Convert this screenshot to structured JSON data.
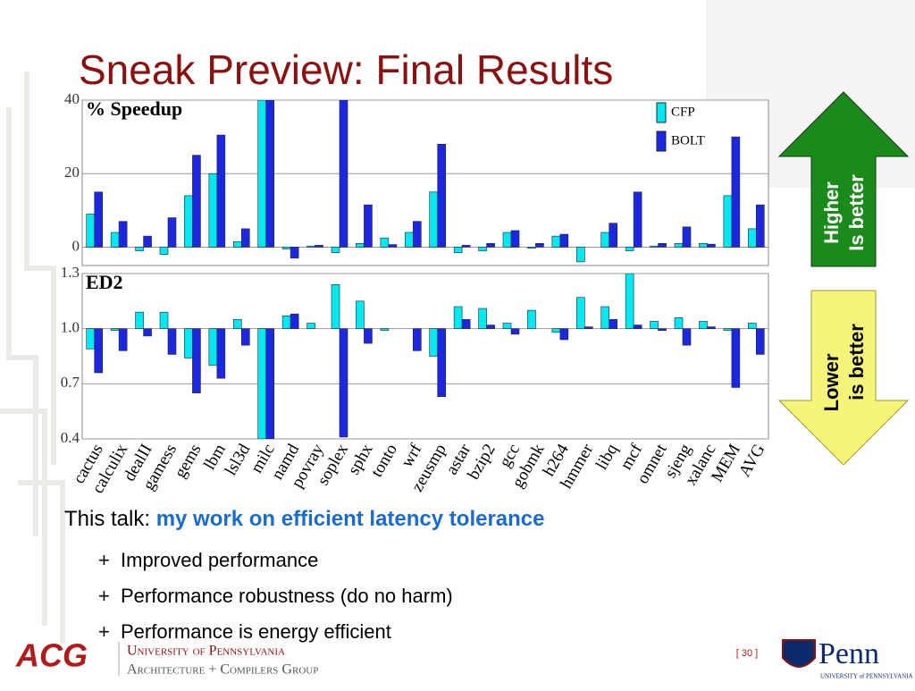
{
  "title": "Sneak Preview: Final Results",
  "chart_data": [
    {
      "type": "bar",
      "title": "% Speedup",
      "ylim": [
        -5,
        40
      ],
      "yticks": [
        0,
        20,
        40
      ],
      "grid": true,
      "legend": "top-right",
      "series": [
        {
          "name": "CFP",
          "color": "#00e8f0",
          "values": [
            9,
            4,
            -1,
            -2,
            14,
            20,
            1.5,
            40,
            -0.5,
            0.3,
            -1.5,
            1,
            2.5,
            4,
            15,
            -1.5,
            -1,
            4,
            -0.3,
            3,
            -4,
            4,
            -1,
            0.3,
            1,
            1,
            14,
            5
          ]
        },
        {
          "name": "BOLT",
          "color": "#1c28e0",
          "values": [
            15,
            7,
            3,
            8,
            25,
            30.5,
            5,
            40,
            -3,
            0.5,
            40,
            11.5,
            0.7,
            7,
            28,
            0.5,
            1,
            4.5,
            1,
            3.5,
            0,
            6.5,
            15,
            1,
            5.5,
            0.8,
            30,
            11.5
          ]
        }
      ]
    },
    {
      "type": "bar",
      "title": "ED2",
      "ylim": [
        0.4,
        1.3
      ],
      "yticks": [
        1.3,
        {
          "value": 1,
          "label": "1.0"
        },
        0.7,
        0.4
      ],
      "grid": true,
      "baseline": 1,
      "categories": [
        "cactus",
        "calculix",
        "dealII",
        "gamess",
        "gems",
        "lbm",
        "lsl3d",
        "milc",
        "namd",
        "povray",
        "soplex",
        "sphx",
        "tonto",
        "wrf",
        "zeusmp",
        "astar",
        "bzip2",
        "gcc",
        "gobmk",
        "h264",
        "hmmer",
        "libq",
        "mcf",
        "omnet",
        "sjeng",
        "xalanc",
        "MEM",
        "AVG"
      ],
      "series": [
        {
          "color": "#00e8f0",
          "values": [
            0.89,
            0.99,
            1.09,
            1.09,
            0.84,
            0.8,
            1.05,
            0.4,
            1.07,
            1.03,
            1.24,
            1.15,
            0.99,
            1,
            0.85,
            1.12,
            1.11,
            1.03,
            1.1,
            0.98,
            1.17,
            1.12,
            1.3,
            1.04,
            1.06,
            1.04,
            0.99,
            1.03
          ]
        },
        {
          "color": "#1c28e0",
          "values": [
            0.76,
            0.88,
            0.96,
            0.86,
            0.65,
            0.73,
            0.91,
            0.4,
            1.08,
            1,
            0.41,
            0.92,
            1,
            0.88,
            0.63,
            1.05,
            1.02,
            0.97,
            1,
            0.94,
            1.01,
            1.05,
            1.02,
            0.99,
            0.91,
            1.01,
            0.68,
            0.86
          ]
        }
      ]
    }
  ],
  "arrows": {
    "up": [
      "Higher",
      "Is better"
    ],
    "down": [
      "Lower",
      "is better"
    ]
  },
  "talk": {
    "lead": "This talk:",
    "highlight": "my work on efficient latency tolerance"
  },
  "bullet_marker": "+",
  "bullets": [
    "Improved performance",
    "Performance robustness (do no harm)",
    "Performance is energy efficient"
  ],
  "footer": {
    "page": "[ 30 ]",
    "acg": "ACG",
    "university": "University of Pennsylvania",
    "group": "Architecture + Compilers Group",
    "penn": "Penn",
    "penn_sub": "UNIVERSITY of PENNSYLVANIA"
  }
}
